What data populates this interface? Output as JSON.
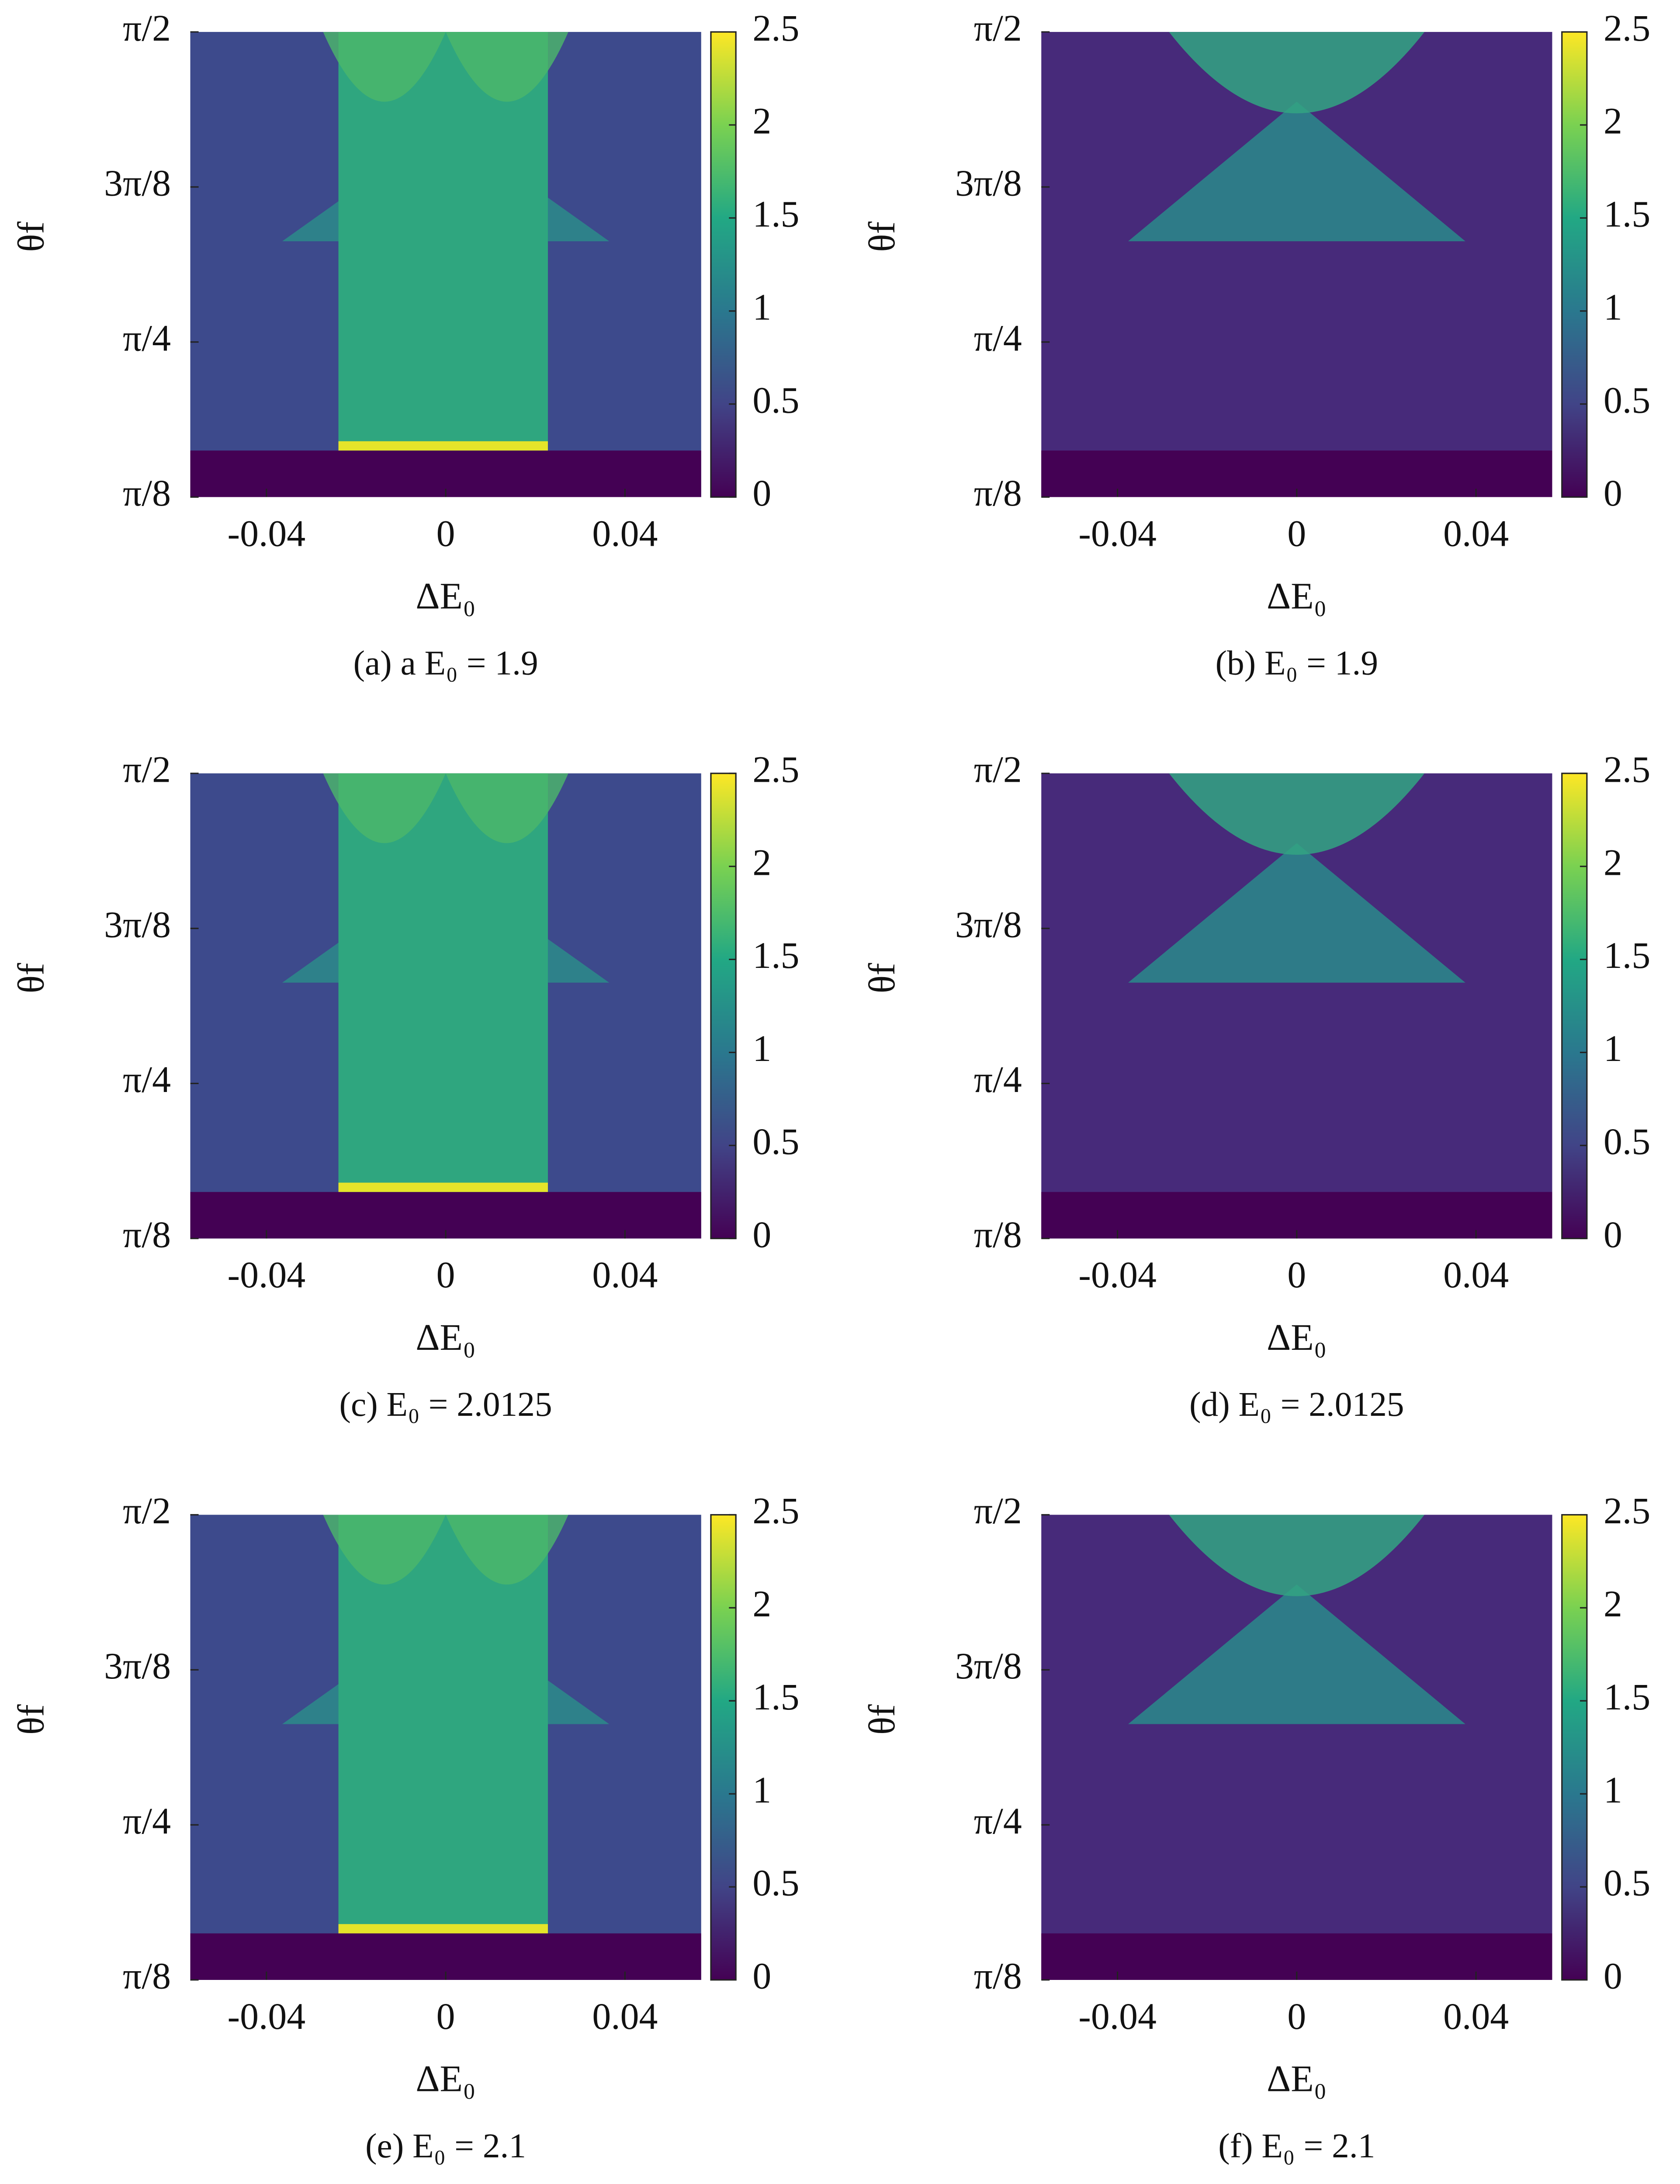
{
  "chart_data": [
    {
      "type": "heatmap",
      "caption": "(a)  a E₀ = 1.9",
      "x_label": "ΔE₀",
      "y_label": "θf",
      "colormap": "viridis",
      "xlim": [
        -0.057,
        0.057
      ],
      "xticks": [
        -0.04,
        0,
        0.04
      ],
      "ylim": [
        0.3927,
        1.5708
      ],
      "yticks": [
        {
          "value": 0.3927,
          "label": "π/8"
        },
        {
          "value": 0.7854,
          "label": "π/4"
        },
        {
          "value": 1.1781,
          "label": "3π/8"
        },
        {
          "value": 1.5708,
          "label": "π/2"
        }
      ],
      "clim": [
        0,
        2.5
      ],
      "cticks": [
        0,
        0.5,
        1,
        1.5,
        2,
        2.5
      ]
    },
    {
      "type": "heatmap",
      "caption": "(b) E₀ = 1.9",
      "x_label": "ΔE₀",
      "y_label": "θf",
      "colormap": "viridis",
      "xlim": [
        -0.057,
        0.057
      ],
      "xticks": [
        -0.04,
        0,
        0.04
      ],
      "ylim": [
        0.3927,
        1.5708
      ],
      "yticks": [
        {
          "value": 0.3927,
          "label": "π/8"
        },
        {
          "value": 0.7854,
          "label": "π/4"
        },
        {
          "value": 1.1781,
          "label": "3π/8"
        },
        {
          "value": 1.5708,
          "label": "π/2"
        }
      ],
      "clim": [
        0,
        2.5
      ],
      "cticks": [
        0,
        0.5,
        1,
        1.5,
        2,
        2.5
      ]
    },
    {
      "type": "heatmap",
      "caption": "(c) E₀ = 2.0125",
      "x_label": "ΔE₀",
      "y_label": "θf",
      "colormap": "viridis",
      "xlim": [
        -0.057,
        0.057
      ],
      "xticks": [
        -0.04,
        0,
        0.04
      ],
      "ylim": [
        0.3927,
        1.5708
      ],
      "yticks": [
        {
          "value": 0.3927,
          "label": "π/8"
        },
        {
          "value": 0.7854,
          "label": "π/4"
        },
        {
          "value": 1.1781,
          "label": "3π/8"
        },
        {
          "value": 1.5708,
          "label": "π/2"
        }
      ],
      "clim": [
        0,
        2.5
      ],
      "cticks": [
        0,
        0.5,
        1,
        1.5,
        2,
        2.5
      ]
    },
    {
      "type": "heatmap",
      "caption": "(d) E₀ = 2.0125",
      "x_label": "ΔE₀",
      "y_label": "θf",
      "colormap": "viridis",
      "xlim": [
        -0.057,
        0.057
      ],
      "xticks": [
        -0.04,
        0,
        0.04
      ],
      "ylim": [
        0.3927,
        1.5708
      ],
      "yticks": [
        {
          "value": 0.3927,
          "label": "π/8"
        },
        {
          "value": 0.7854,
          "label": "π/4"
        },
        {
          "value": 1.1781,
          "label": "3π/8"
        },
        {
          "value": 1.5708,
          "label": "π/2"
        }
      ],
      "clim": [
        0,
        2.5
      ],
      "cticks": [
        0,
        0.5,
        1,
        1.5,
        2,
        2.5
      ]
    },
    {
      "type": "heatmap",
      "caption": "(e) E₀ = 2.1",
      "x_label": "ΔE₀",
      "y_label": "θf",
      "colormap": "viridis",
      "xlim": [
        -0.057,
        0.057
      ],
      "xticks": [
        -0.04,
        0,
        0.04
      ],
      "ylim": [
        0.3927,
        1.5708
      ],
      "yticks": [
        {
          "value": 0.3927,
          "label": "π/8"
        },
        {
          "value": 0.7854,
          "label": "π/4"
        },
        {
          "value": 1.1781,
          "label": "3π/8"
        },
        {
          "value": 1.5708,
          "label": "π/2"
        }
      ],
      "clim": [
        0,
        2.5
      ],
      "cticks": [
        0,
        0.5,
        1,
        1.5,
        2,
        2.5
      ]
    },
    {
      "type": "heatmap",
      "caption": "(f) E₀ = 2.1",
      "x_label": "ΔE₀",
      "y_label": "θf",
      "colormap": "viridis",
      "xlim": [
        -0.057,
        0.057
      ],
      "xticks": [
        -0.04,
        0,
        0.04
      ],
      "ylim": [
        0.3927,
        1.5708
      ],
      "yticks": [
        {
          "value": 0.3927,
          "label": "π/8"
        },
        {
          "value": 0.7854,
          "label": "π/4"
        },
        {
          "value": 1.1781,
          "label": "3π/8"
        },
        {
          "value": 1.5708,
          "label": "π/2"
        }
      ],
      "clim": [
        0,
        2.5
      ],
      "cticks": [
        0,
        0.5,
        1,
        1.5,
        2,
        2.5
      ]
    }
  ]
}
